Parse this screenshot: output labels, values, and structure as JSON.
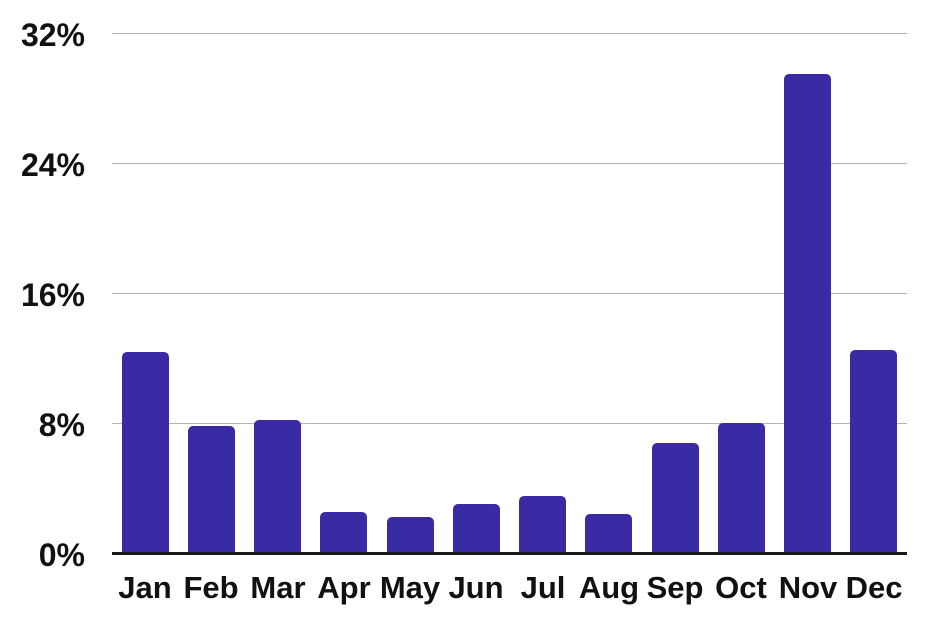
{
  "chart_data": {
    "type": "bar",
    "title": "",
    "xlabel": "",
    "ylabel": "",
    "categories": [
      "Jan",
      "Feb",
      "Mar",
      "Apr",
      "May",
      "Jun",
      "Jul",
      "Aug",
      "Sep",
      "Oct",
      "Nov",
      "Dec"
    ],
    "values": [
      12.4,
      7.8,
      8.2,
      2.5,
      2.2,
      3.0,
      3.5,
      2.4,
      6.8,
      8.0,
      29.5,
      12.5
    ],
    "value_unit": "%",
    "ylim": [
      0,
      32
    ],
    "yticks": [
      0,
      8,
      16,
      24,
      32
    ],
    "ytick_labels": [
      "0%",
      "8%",
      "16%",
      "24%",
      "32%"
    ],
    "grid": true,
    "legend": false,
    "colors": {
      "bar": "#3A2AA4",
      "gridline": "#b3b3b3",
      "baseline": "#1a1a1a",
      "label_text": "#111111",
      "background": "#ffffff"
    }
  }
}
